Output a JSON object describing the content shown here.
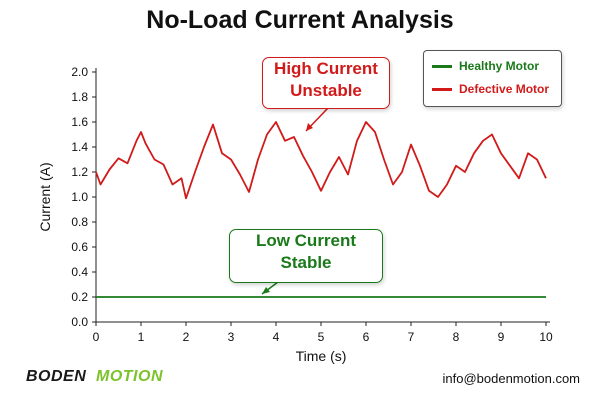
{
  "chart_data": {
    "type": "line",
    "title": "No-Load Current Analysis",
    "xlabel": "Time (s)",
    "ylabel": "Current (A)",
    "xlim": [
      0,
      10
    ],
    "ylim": [
      0,
      2.0
    ],
    "x_ticks": [
      "0",
      "1",
      "2",
      "3",
      "4",
      "5",
      "6",
      "7",
      "8",
      "9",
      "10"
    ],
    "y_ticks": [
      "0.0",
      "0.2",
      "0.4",
      "0.6",
      "0.8",
      "1.0",
      "1.2",
      "1.4",
      "1.6",
      "1.8",
      "2.0"
    ],
    "grid": false,
    "legend_position": "top-right",
    "series": [
      {
        "name": "Healthy Motor",
        "color": "#1a7a1a",
        "x": [
          0,
          0.5,
          1,
          1.5,
          2,
          2.5,
          3,
          3.5,
          4,
          4.5,
          5,
          5.5,
          6,
          6.5,
          7,
          7.5,
          8,
          8.5,
          9,
          9.5,
          10
        ],
        "y": [
          0.2,
          0.2,
          0.2,
          0.2,
          0.2,
          0.2,
          0.2,
          0.2,
          0.2,
          0.2,
          0.2,
          0.2,
          0.2,
          0.2,
          0.2,
          0.2,
          0.2,
          0.2,
          0.2,
          0.2,
          0.2
        ]
      },
      {
        "name": "Defective Motor",
        "color": "#d11a1a",
        "x": [
          0,
          0.1,
          0.3,
          0.5,
          0.7,
          0.9,
          1.0,
          1.1,
          1.3,
          1.5,
          1.7,
          1.9,
          2.0,
          2.2,
          2.4,
          2.6,
          2.8,
          3.0,
          3.2,
          3.4,
          3.6,
          3.8,
          4.0,
          4.2,
          4.4,
          4.6,
          4.8,
          5.0,
          5.2,
          5.4,
          5.6,
          5.8,
          6.0,
          6.2,
          6.4,
          6.6,
          6.8,
          7.0,
          7.2,
          7.4,
          7.6,
          7.8,
          8.0,
          8.2,
          8.4,
          8.6,
          8.8,
          9.0,
          9.2,
          9.4,
          9.6,
          9.8,
          10.0
        ],
        "y": [
          1.2,
          1.1,
          1.22,
          1.31,
          1.27,
          1.45,
          1.52,
          1.43,
          1.3,
          1.26,
          1.1,
          1.15,
          0.99,
          1.2,
          1.4,
          1.58,
          1.35,
          1.3,
          1.18,
          1.04,
          1.3,
          1.5,
          1.6,
          1.45,
          1.48,
          1.33,
          1.2,
          1.05,
          1.2,
          1.32,
          1.18,
          1.45,
          1.6,
          1.52,
          1.3,
          1.1,
          1.2,
          1.42,
          1.25,
          1.05,
          1.0,
          1.1,
          1.25,
          1.2,
          1.35,
          1.45,
          1.5,
          1.35,
          1.25,
          1.15,
          1.35,
          1.3,
          1.15
        ]
      }
    ],
    "annotations": [
      {
        "lines": [
          "High Current",
          "Unstable"
        ],
        "color": "#d11a1a"
      },
      {
        "lines": [
          "Low Current",
          "Stable"
        ],
        "color": "#1a7a1a"
      }
    ]
  },
  "brand": {
    "logo_part1": "BODEN",
    "logo_part2": "MOTION",
    "logo_color1": "#1a1a1a",
    "logo_color2": "#7cc22a",
    "email": "info@bodenmotion.com"
  }
}
